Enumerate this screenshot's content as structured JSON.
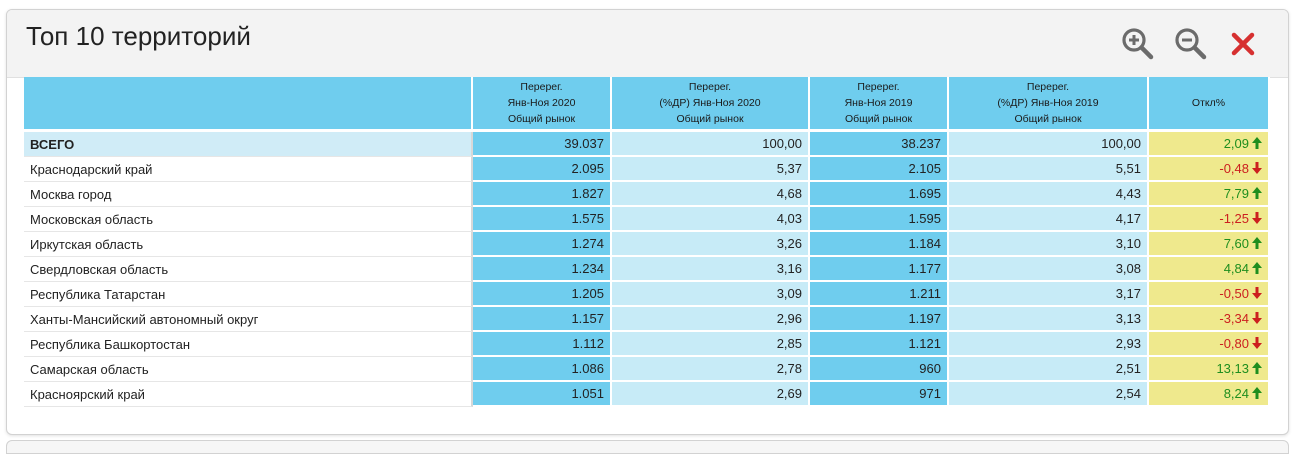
{
  "panel": {
    "title": "Топ 10 территорий",
    "icons": [
      "zoom-in-icon",
      "zoom-out-icon",
      "close-icon"
    ]
  },
  "table": {
    "columns": [
      {
        "lines": [
          "",
          "",
          ""
        ]
      },
      {
        "lines": [
          "Перерег.",
          "Янв-Ноя 2020",
          "Общий рынок"
        ]
      },
      {
        "lines": [
          "Перерег.",
          "(%ДР) Янв-Ноя 2020",
          "Общий рынок"
        ]
      },
      {
        "lines": [
          "Перерег.",
          "Янв-Ноя 2019",
          "Общий рынок"
        ]
      },
      {
        "lines": [
          "Перерег.",
          "(%ДР) Янв-Ноя 2019",
          "Общий рынок"
        ]
      },
      {
        "lines": [
          "Откл%",
          "",
          ""
        ]
      }
    ],
    "rows": [
      {
        "name": "ВСЕГО",
        "v2020": "39.037",
        "p2020": "100,00",
        "v2019": "38.237",
        "p2019": "100,00",
        "dev": "2,09",
        "dir": "up"
      },
      {
        "name": "Краснодарский край",
        "v2020": "2.095",
        "p2020": "5,37",
        "v2019": "2.105",
        "p2019": "5,51",
        "dev": "-0,48",
        "dir": "down"
      },
      {
        "name": "Москва город",
        "v2020": "1.827",
        "p2020": "4,68",
        "v2019": "1.695",
        "p2019": "4,43",
        "dev": "7,79",
        "dir": "up"
      },
      {
        "name": "Московская область",
        "v2020": "1.575",
        "p2020": "4,03",
        "v2019": "1.595",
        "p2019": "4,17",
        "dev": "-1,25",
        "dir": "down"
      },
      {
        "name": "Иркутская область",
        "v2020": "1.274",
        "p2020": "3,26",
        "v2019": "1.184",
        "p2019": "3,10",
        "dev": "7,60",
        "dir": "up"
      },
      {
        "name": "Свердловская область",
        "v2020": "1.234",
        "p2020": "3,16",
        "v2019": "1.177",
        "p2019": "3,08",
        "dev": "4,84",
        "dir": "up"
      },
      {
        "name": "Республика Татарстан",
        "v2020": "1.205",
        "p2020": "3,09",
        "v2019": "1.211",
        "p2019": "3,17",
        "dev": "-0,50",
        "dir": "down"
      },
      {
        "name": "Ханты-Мансийский автономный округ",
        "v2020": "1.157",
        "p2020": "2,96",
        "v2019": "1.197",
        "p2019": "3,13",
        "dev": "-3,34",
        "dir": "down"
      },
      {
        "name": "Республика Башкортостан",
        "v2020": "1.112",
        "p2020": "2,85",
        "v2019": "1.121",
        "p2019": "2,93",
        "dev": "-0,80",
        "dir": "down"
      },
      {
        "name": "Самарская область",
        "v2020": "1.086",
        "p2020": "2,78",
        "v2019": "960",
        "p2019": "2,51",
        "dev": "13,13",
        "dir": "up"
      },
      {
        "name": "Красноярский край",
        "v2020": "1.051",
        "p2020": "2,69",
        "v2019": "971",
        "p2019": "2,54",
        "dev": "8,24",
        "dir": "up"
      }
    ]
  },
  "colors": {
    "header_blue": "#6fcdee",
    "light_blue": "#c7ebf7",
    "deviation_yellow": "#efe98d",
    "up_green": "#1e8e1e",
    "down_red": "#cc1f1f",
    "close_red": "#d63030",
    "zoom_gray": "#6b6b6b"
  }
}
